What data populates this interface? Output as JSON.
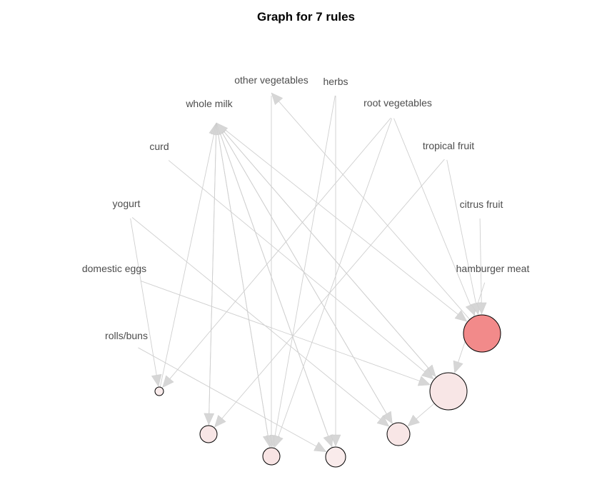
{
  "title": "Graph for 7 rules",
  "items": [
    {
      "id": "other_vegetables",
      "label": "other vegetables"
    },
    {
      "id": "herbs",
      "label": "herbs"
    },
    {
      "id": "root_vegetables",
      "label": "root vegetables"
    },
    {
      "id": "tropical_fruit",
      "label": "tropical fruit"
    },
    {
      "id": "citrus_fruit",
      "label": "citrus fruit"
    },
    {
      "id": "hamburger_meat",
      "label": "hamburger meat"
    },
    {
      "id": "whole_milk",
      "label": "whole milk"
    },
    {
      "id": "curd",
      "label": "curd"
    },
    {
      "id": "yogurt",
      "label": "yogurt"
    },
    {
      "id": "domestic_eggs",
      "label": "domestic eggs"
    },
    {
      "id": "rolls_buns",
      "label": "rolls/buns"
    }
  ],
  "rules": [
    {
      "id": "r1",
      "support_level": 0.0,
      "lift_level": 0.05
    },
    {
      "id": "r2",
      "support_level": 0.3,
      "lift_level": 0.1
    },
    {
      "id": "r3",
      "support_level": 0.3,
      "lift_level": 0.12
    },
    {
      "id": "r4",
      "support_level": 0.4,
      "lift_level": 0.05
    },
    {
      "id": "r5",
      "support_level": 0.5,
      "lift_level": 0.1
    },
    {
      "id": "r6",
      "support_level": 1.0,
      "lift_level": 0.1
    },
    {
      "id": "r7",
      "support_level": 1.0,
      "lift_level": 1.0
    }
  ],
  "colors": {
    "low": "#f9f0f0",
    "high": "#f28a8a",
    "edge": "#cfcfcf",
    "arrow": "#d6d6d6"
  },
  "edges": [
    [
      "whole_milk",
      "r7"
    ],
    [
      "whole_milk",
      "r6"
    ],
    [
      "whole_milk",
      "r5"
    ],
    [
      "whole_milk",
      "r4"
    ],
    [
      "whole_milk",
      "r3"
    ],
    [
      "whole_milk",
      "r2"
    ],
    [
      "r1",
      "whole_milk"
    ],
    [
      "r2",
      "whole_milk"
    ],
    [
      "r3",
      "whole_milk"
    ],
    [
      "r4",
      "whole_milk"
    ],
    [
      "r5",
      "whole_milk"
    ],
    [
      "r6",
      "whole_milk"
    ],
    [
      "r7",
      "other_vegetables"
    ],
    [
      "other_vegetables",
      "r3"
    ],
    [
      "herbs",
      "r3"
    ],
    [
      "herbs",
      "r4"
    ],
    [
      "root_vegetables",
      "r7"
    ],
    [
      "root_vegetables",
      "r3"
    ],
    [
      "root_vegetables",
      "r1"
    ],
    [
      "tropical_fruit",
      "r7"
    ],
    [
      "tropical_fruit",
      "r2"
    ],
    [
      "citrus_fruit",
      "r7"
    ],
    [
      "hamburger_meat",
      "r6"
    ],
    [
      "curd",
      "r6"
    ],
    [
      "yogurt",
      "r1"
    ],
    [
      "yogurt",
      "r5"
    ],
    [
      "domestic_eggs",
      "r6"
    ],
    [
      "rolls_buns",
      "r4"
    ],
    [
      "r6",
      "r5"
    ]
  ]
}
